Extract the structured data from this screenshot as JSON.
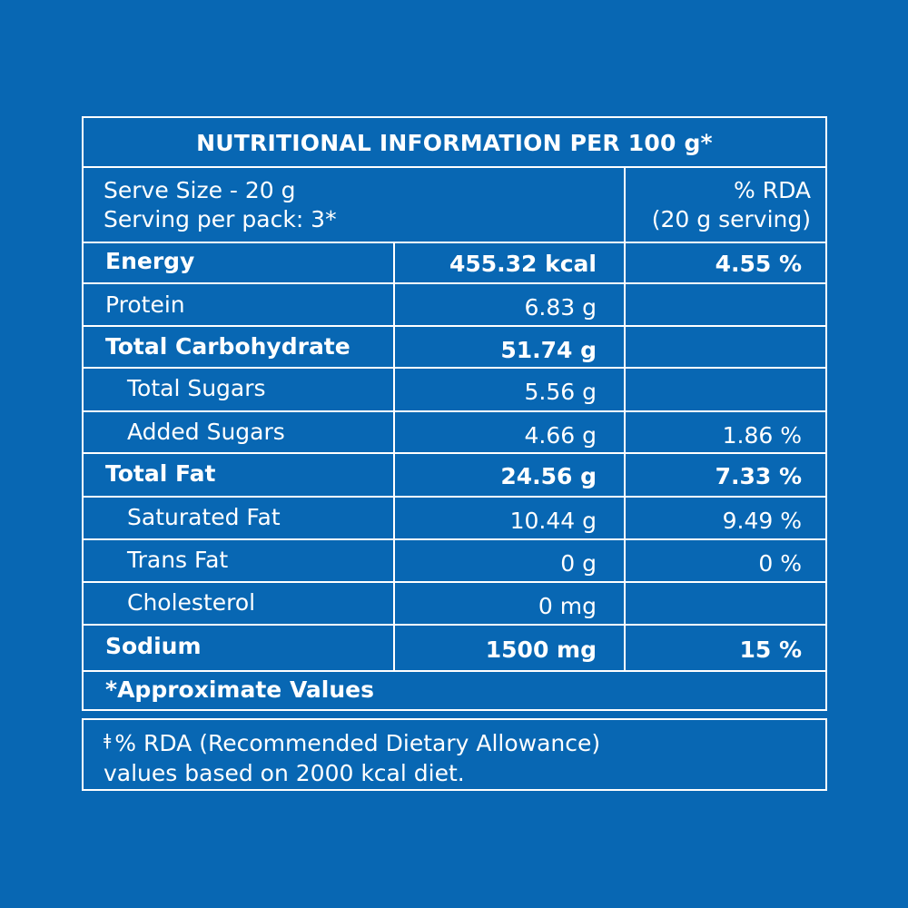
{
  "title": "NUTRITIONAL INFORMATION PER 100 g*",
  "serve": {
    "size": "Serve Size - 20 g",
    "per_pack": "Serving per pack: 3*",
    "rda_heading_1": "% RDA",
    "rda_heading_2": "(20 g serving)"
  },
  "rows": [
    {
      "name": "Energy",
      "amount": "455.32 kcal",
      "rda": "4.55 %"
    },
    {
      "name": "Protein",
      "amount": "6.83 g",
      "rda": ""
    },
    {
      "name": "Total Carbohydrate",
      "amount": "51.74 g",
      "rda": ""
    },
    {
      "name": "Total Sugars",
      "amount": "5.56 g",
      "rda": ""
    },
    {
      "name": "Added Sugars",
      "amount": "4.66 g",
      "rda": "1.86 %"
    },
    {
      "name": "Total Fat",
      "amount": "24.56 g",
      "rda": "7.33 %"
    },
    {
      "name": "Saturated Fat",
      "amount": "10.44 g",
      "rda": "9.49 %"
    },
    {
      "name": "Trans Fat",
      "amount": "0 g",
      "rda": "0 %"
    },
    {
      "name": "Cholesterol",
      "amount": "0 mg",
      "rda": ""
    },
    {
      "name": "Sodium",
      "amount": "1500 mg",
      "rda": "15 %"
    }
  ],
  "approx": "*Approximate Values",
  "note": {
    "mark": "ǂ",
    "line1": "% RDA (Recommended Dietary Allowance)",
    "line2": "values based on 2000 kcal diet."
  },
  "colors": {
    "background": "#0867b3",
    "text": "#ffffff"
  }
}
